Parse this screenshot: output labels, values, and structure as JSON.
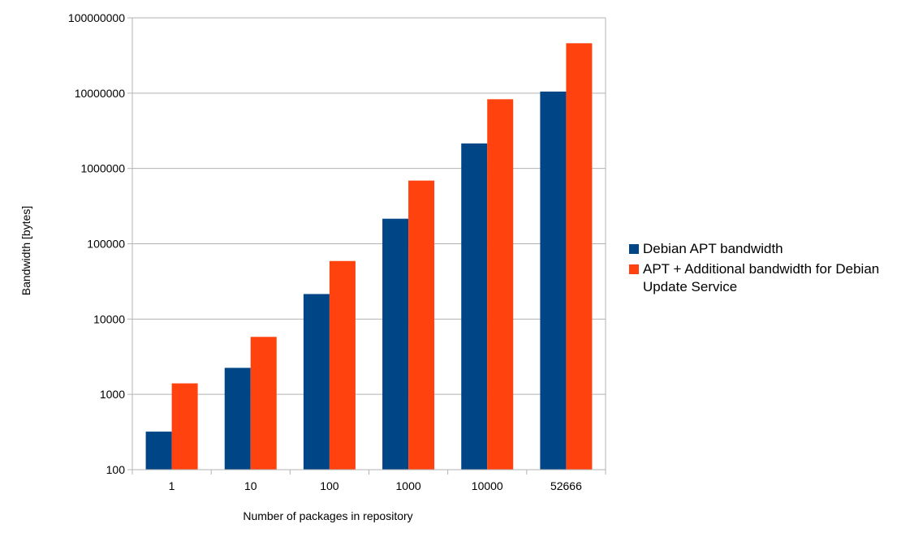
{
  "chart_data": {
    "type": "bar",
    "title": "",
    "xlabel": "Number of packages in repository",
    "ylabel": "Bandwidth [bytes]",
    "yscale": "log",
    "ylim": [
      100,
      100000000
    ],
    "grid": true,
    "legend_position": "right",
    "y_tick_labels": [
      "100",
      "1000",
      "10000",
      "100000",
      "1000000",
      "10000000",
      "100000000"
    ],
    "categories": [
      "1",
      "10",
      "100",
      "1000",
      "10000",
      "52666"
    ],
    "series": [
      {
        "name": "Debian APT bandwidth",
        "color": "#004586",
        "values": [
          320,
          2250,
          21500,
          215000,
          2150000,
          10500000
        ]
      },
      {
        "name": "APT + Additional bandwidth for Debian Update Service",
        "color": "#ff420e",
        "values": [
          1400,
          5800,
          59000,
          690000,
          8300000,
          46000000
        ]
      }
    ]
  }
}
